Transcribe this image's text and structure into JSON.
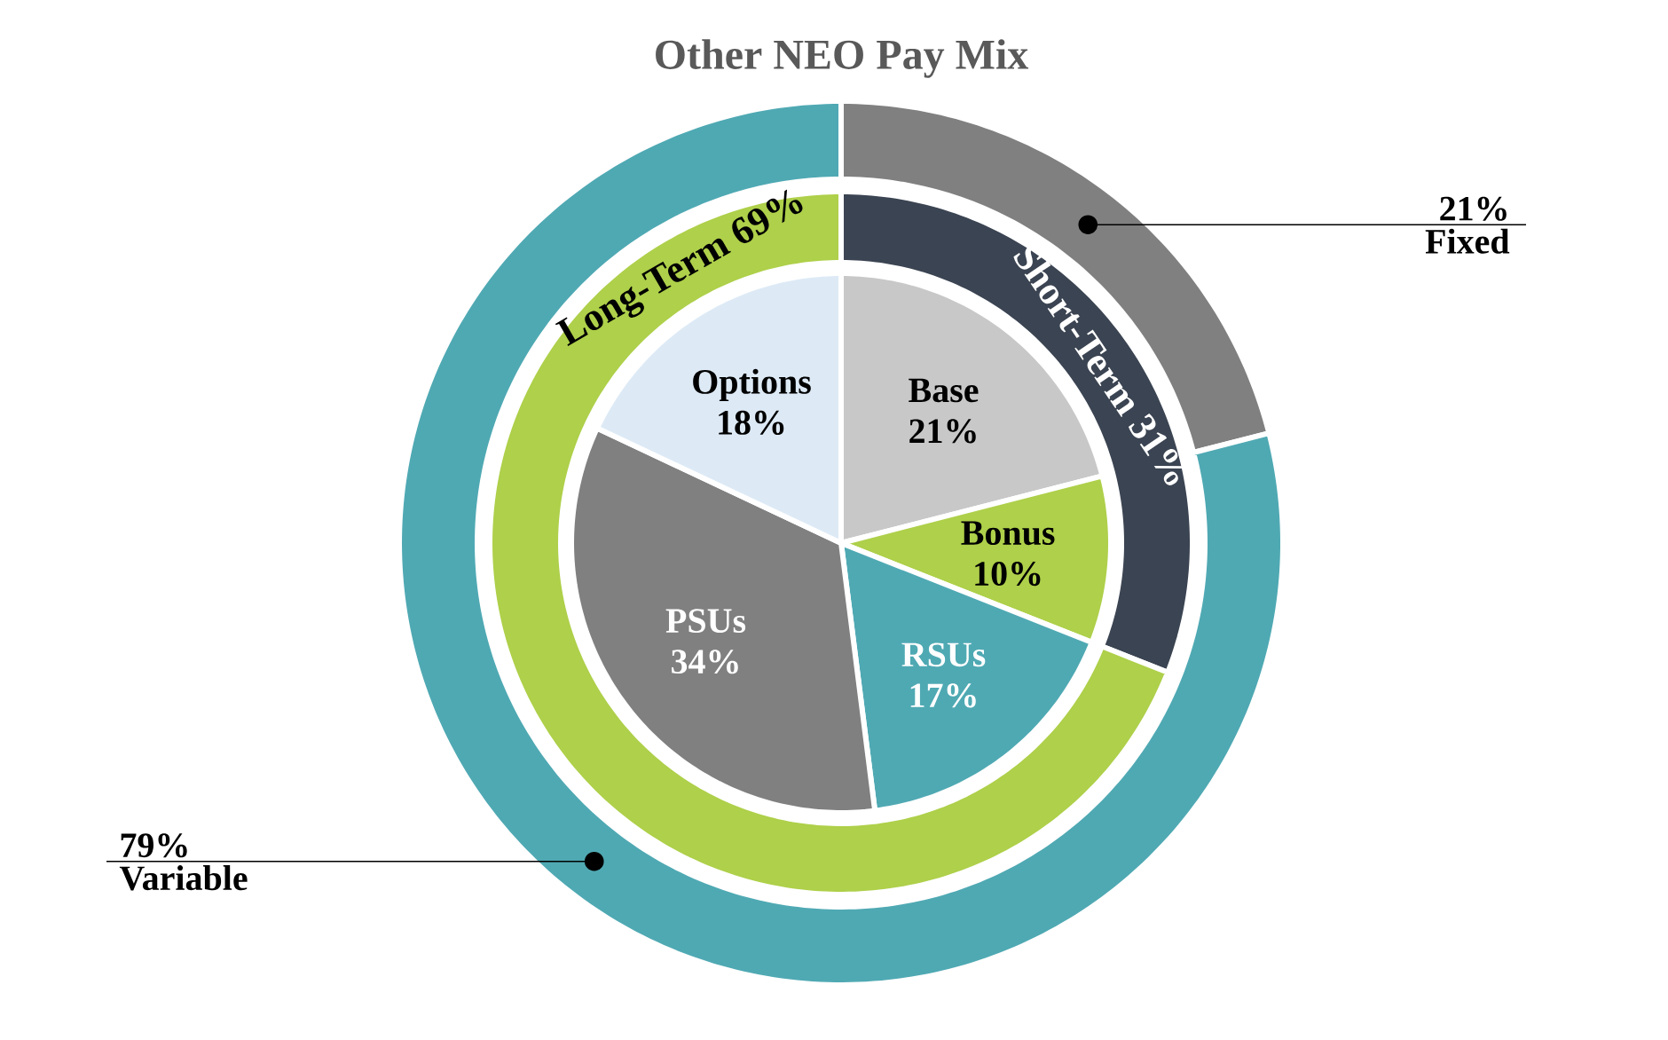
{
  "chart_data": [
    {
      "type": "donut",
      "title": "Other NEO Pay Mix",
      "categories": [
        "Fixed",
        "Variable"
      ],
      "values": [
        21,
        79
      ],
      "colors": [
        "#808080",
        "#4fa9b3"
      ],
      "value_labels": [
        "21%",
        "79%"
      ]
    },
    {
      "type": "donut",
      "categories": [
        "Short-Term",
        "Long-Term"
      ],
      "values": [
        31,
        69
      ],
      "colors": [
        "#3b4452",
        "#aed04a"
      ],
      "value_labels": [
        "31%",
        "69%"
      ]
    },
    {
      "type": "pie",
      "categories": [
        "Base",
        "Bonus",
        "RSUs",
        "PSUs",
        "Options"
      ],
      "values": [
        21,
        10,
        17,
        34,
        18
      ],
      "colors": [
        "#c8c8c8",
        "#aed04a",
        "#4fa9b3",
        "#808080",
        "#ddeaf6"
      ],
      "value_labels": [
        "21%",
        "10%",
        "17%",
        "34%",
        "18%"
      ]
    }
  ]
}
